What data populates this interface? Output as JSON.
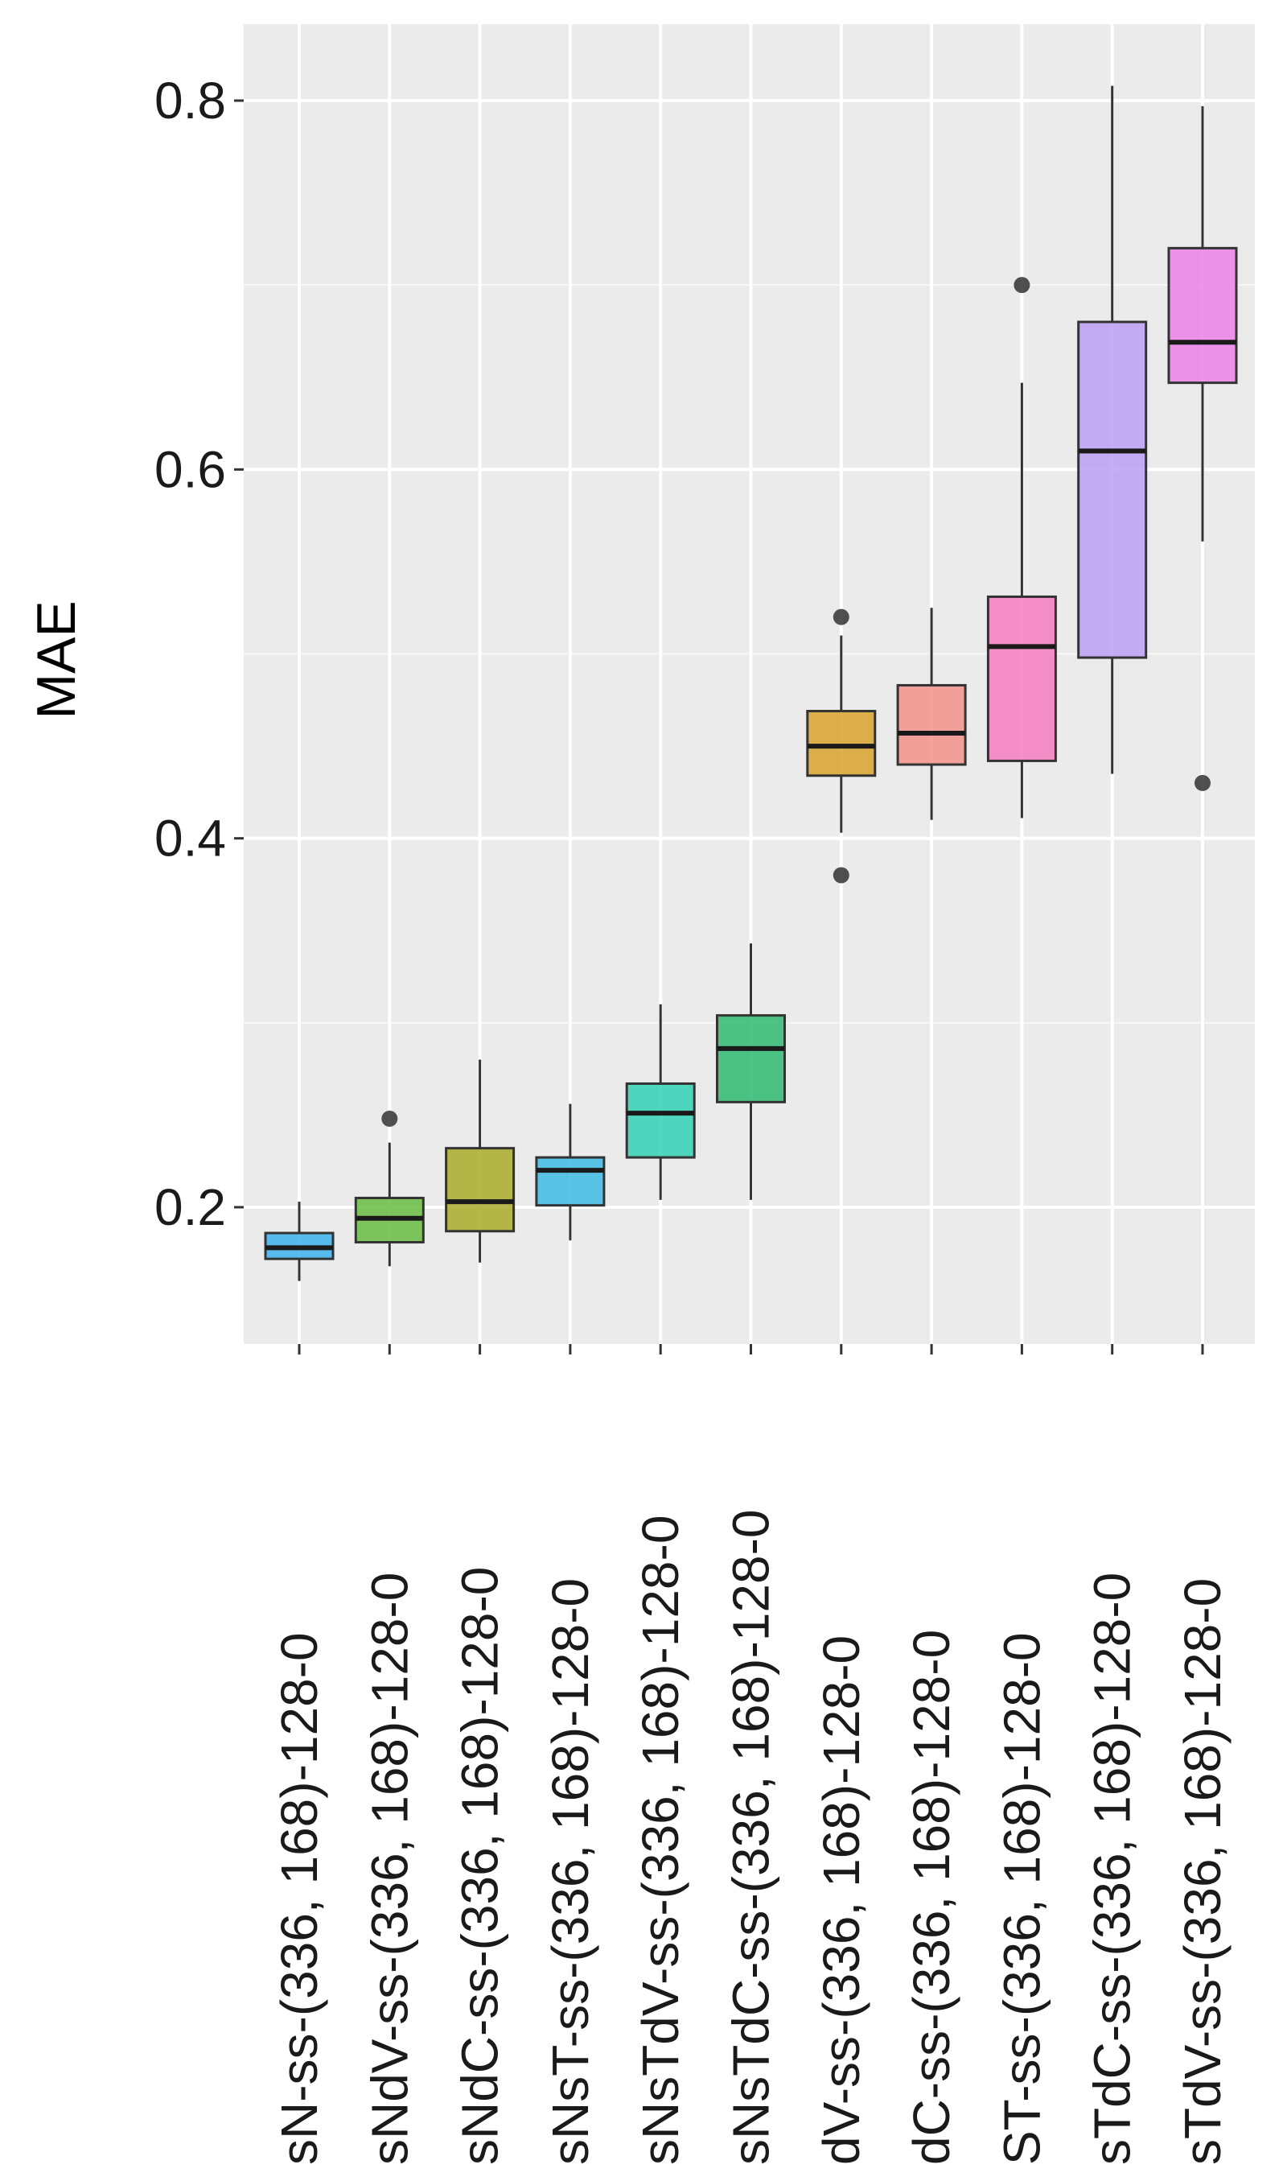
{
  "chart_data": {
    "type": "boxplot",
    "title": "",
    "xlabel": "",
    "ylabel": "MAE",
    "ylim": [
      0.13,
      0.85
    ],
    "yticks": [
      0.2,
      0.4,
      0.6,
      0.8
    ],
    "ytick_labels": [
      "0.2",
      "0.4",
      "0.6",
      "0.8"
    ],
    "grid": true,
    "legend": "none",
    "categories": [
      "sN-ss-(336, 168)-128-0",
      "sNdV-ss-(336, 168)-128-0",
      "sNdC-ss-(336, 168)-128-0",
      "sNsT-ss-(336, 168)-128-0",
      "sNsTdV-ss-(336, 168)-128-0",
      "sNsTdC-ss-(336, 168)-128-0",
      "dV-ss-(336, 168)-128-0",
      "dC-ss-(336, 168)-128-0",
      "ST-ss-(336, 168)-128-0",
      "sTdC-ss-(336, 168)-128-0",
      "sTdV-ss-(336, 168)-128-0"
    ],
    "boxes": [
      {
        "min": 0.16,
        "q1": 0.172,
        "median": 0.178,
        "q3": 0.186,
        "max": 0.203,
        "outliers": [],
        "color": "#35b0ec"
      },
      {
        "min": 0.168,
        "q1": 0.181,
        "median": 0.194,
        "q3": 0.205,
        "max": 0.235,
        "outliers": [
          0.248
        ],
        "color": "#63b93a"
      },
      {
        "min": 0.17,
        "q1": 0.187,
        "median": 0.203,
        "q3": 0.232,
        "max": 0.28,
        "outliers": [],
        "color": "#a6aa22"
      },
      {
        "min": 0.182,
        "q1": 0.201,
        "median": 0.22,
        "q3": 0.227,
        "max": 0.256,
        "outliers": [],
        "color": "#37b8e4"
      },
      {
        "min": 0.204,
        "q1": 0.227,
        "median": 0.251,
        "q3": 0.267,
        "max": 0.31,
        "outliers": [],
        "color": "#2bcfb2"
      },
      {
        "min": 0.204,
        "q1": 0.257,
        "median": 0.286,
        "q3": 0.304,
        "max": 0.343,
        "outliers": [],
        "color": "#27b86b"
      },
      {
        "min": 0.403,
        "q1": 0.434,
        "median": 0.45,
        "q3": 0.469,
        "max": 0.51,
        "outliers": [
          0.38,
          0.52
        ],
        "color": "#d8a026"
      },
      {
        "min": 0.41,
        "q1": 0.44,
        "median": 0.457,
        "q3": 0.483,
        "max": 0.525,
        "outliers": [],
        "color": "#f08e86"
      },
      {
        "min": 0.411,
        "q1": 0.442,
        "median": 0.504,
        "q3": 0.531,
        "max": 0.647,
        "outliers": [
          0.7
        ],
        "color": "#f577bd"
      },
      {
        "min": 0.435,
        "q1": 0.498,
        "median": 0.61,
        "q3": 0.68,
        "max": 0.808,
        "outliers": [],
        "color": "#b99cf4"
      },
      {
        "min": 0.561,
        "q1": 0.647,
        "median": 0.669,
        "q3": 0.72,
        "max": 0.797,
        "outliers": [
          0.43
        ],
        "color": "#ec7ce6"
      }
    ]
  }
}
